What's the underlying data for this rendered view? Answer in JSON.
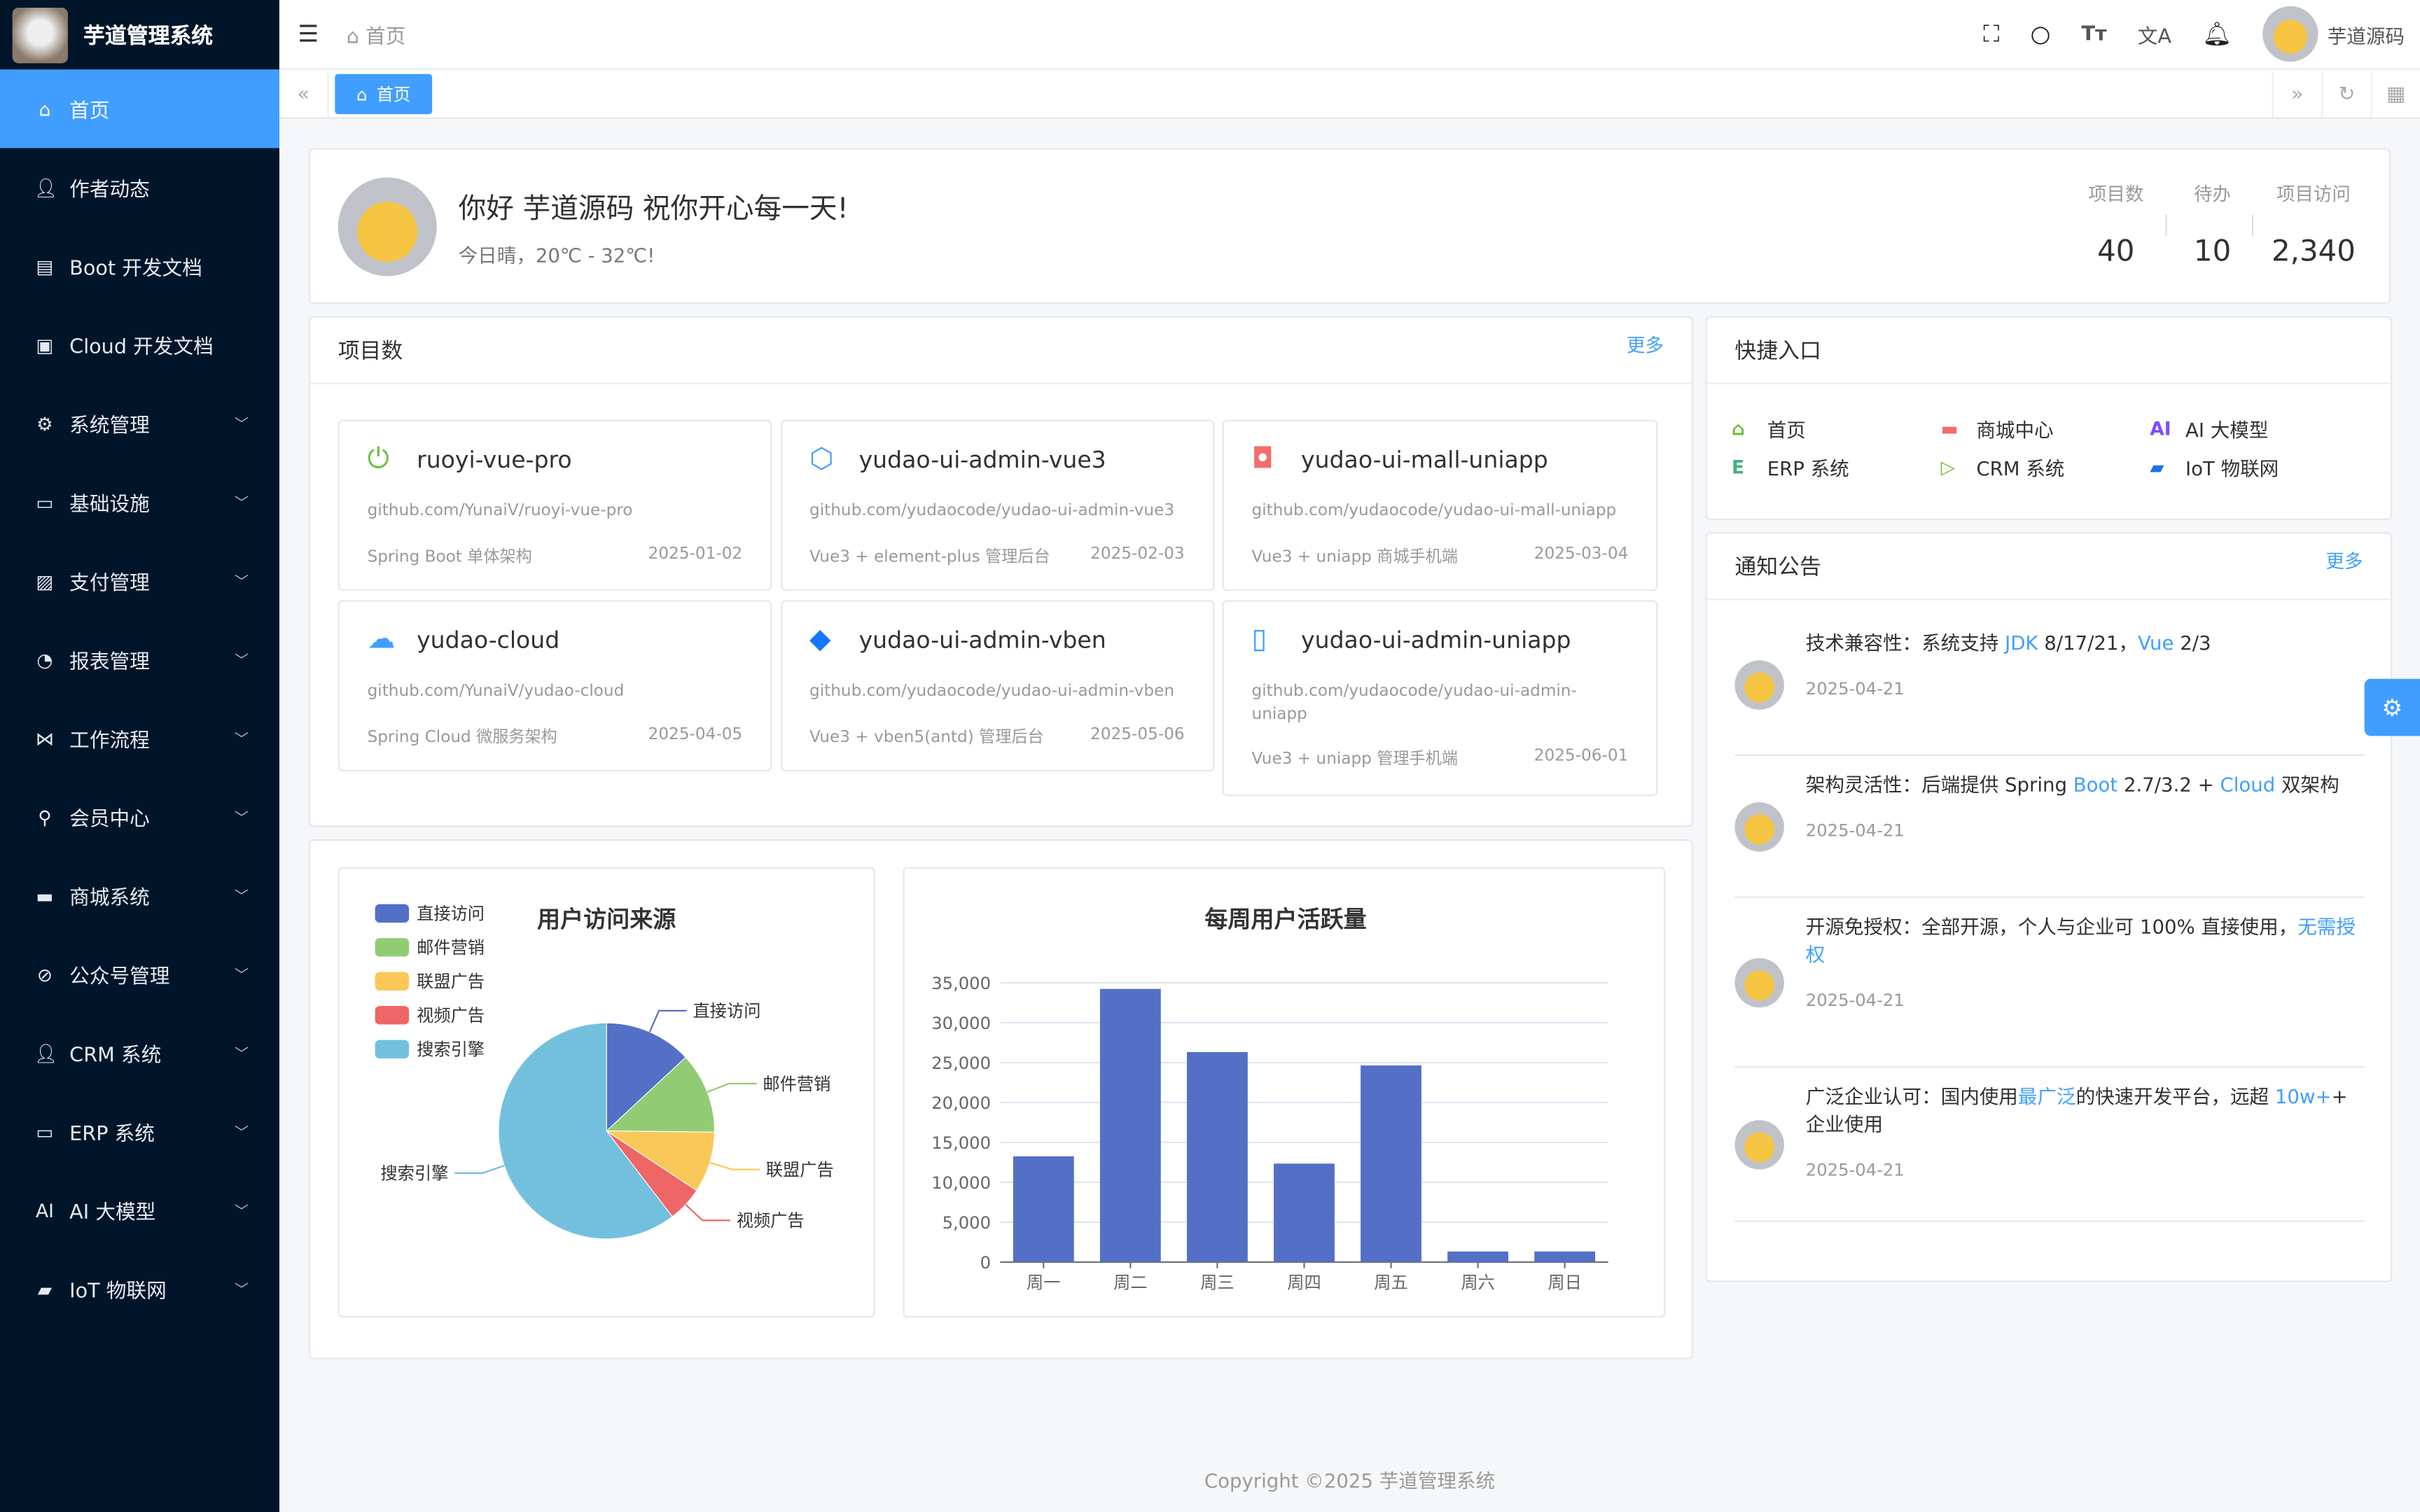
{
  "app": {
    "title": "芋道管理系统"
  },
  "sidebar": {
    "items": [
      {
        "label": "首页",
        "icon": "home-icon",
        "active": true,
        "expand": false
      },
      {
        "label": "作者动态",
        "icon": "user-icon",
        "expand": false
      },
      {
        "label": "Boot 开发文档",
        "icon": "document-icon",
        "expand": false
      },
      {
        "label": "Cloud 开发文档",
        "icon": "documents-icon",
        "expand": false
      },
      {
        "label": "系统管理",
        "icon": "gear-icon",
        "expand": true
      },
      {
        "label": "基础设施",
        "icon": "monitor-icon",
        "expand": true
      },
      {
        "label": "支付管理",
        "icon": "payment-icon",
        "expand": true
      },
      {
        "label": "报表管理",
        "icon": "pie-chart-icon",
        "expand": true
      },
      {
        "label": "工作流程",
        "icon": "workflow-icon",
        "expand": true
      },
      {
        "label": "会员中心",
        "icon": "bicycle-icon",
        "expand": true
      },
      {
        "label": "商城系统",
        "icon": "shop-icon",
        "expand": true
      },
      {
        "label": "公众号管理",
        "icon": "compass-icon",
        "expand": true
      },
      {
        "label": "CRM 系统",
        "icon": "user-icon",
        "expand": true
      },
      {
        "label": "ERP 系统",
        "icon": "store-icon",
        "expand": true
      },
      {
        "label": "AI 大模型",
        "icon": "ai-icon",
        "expand": true
      },
      {
        "label": "IoT 物联网",
        "icon": "car-icon",
        "expand": true
      }
    ]
  },
  "header": {
    "breadcrumb": "首页",
    "username": "芋道源码"
  },
  "tags": {
    "active": "首页"
  },
  "welcome": {
    "greeting": "你好 芋道源码 祝你开心每一天!",
    "weather": "今日晴，20℃ - 32℃!",
    "stats": [
      {
        "label": "项目数",
        "value": "40"
      },
      {
        "label": "待办",
        "value": "10"
      },
      {
        "label": "项目访问",
        "value": "2,340"
      }
    ]
  },
  "projects": {
    "title": "项目数",
    "more": "更多",
    "items": [
      {
        "name": "ruoyi-vue-pro",
        "url": "github.com/YunaiV/ruoyi-vue-pro",
        "desc": "Spring Boot 单体架构",
        "date": "2025-01-02",
        "icon": "power-icon",
        "color": "#67c23a"
      },
      {
        "name": "yudao-ui-admin-vue3",
        "url": "github.com/yudaocode/yudao-ui-admin-vue3",
        "desc": "Vue3 + element-plus 管理后台",
        "date": "2025-02-03",
        "icon": "vite-icon",
        "color": "#409eff"
      },
      {
        "name": "yudao-ui-mall-uniapp",
        "url": "github.com/yudaocode/yudao-ui-mall-uniapp",
        "desc": "Vue3 + uniapp 商城手机端",
        "date": "2025-03-04",
        "icon": "shopping-bag-icon",
        "color": "#f56c6c"
      },
      {
        "name": "yudao-cloud",
        "url": "github.com/YunaiV/yudao-cloud",
        "desc": "Spring Cloud 微服务架构",
        "date": "2025-04-05",
        "icon": "cloud-icon",
        "color": "#409eff"
      },
      {
        "name": "yudao-ui-admin-vben",
        "url": "github.com/yudaocode/yudao-ui-admin-vben",
        "desc": "Vue3 + vben5(antd) 管理后台",
        "date": "2025-05-06",
        "icon": "diamond-icon",
        "color": "#1677ff"
      },
      {
        "name": "yudao-ui-admin-uniapp",
        "url": "github.com/yudaocode/yudao-ui-admin-uniapp",
        "desc": "Vue3 + uniapp 管理手机端",
        "date": "2025-06-01",
        "icon": "mobile-icon",
        "color": "#409eff"
      }
    ]
  },
  "quick": {
    "title": "快捷入口",
    "items": [
      {
        "label": "首页",
        "icon": "home-icon",
        "color": "#67c23a"
      },
      {
        "label": "商城中心",
        "icon": "shop-icon",
        "color": "#f56c6c"
      },
      {
        "label": "AI 大模型",
        "icon": "ai-icon",
        "color": "#7c4dff"
      },
      {
        "label": "ERP 系统",
        "icon": "erp-icon",
        "color": "#3fb27f"
      },
      {
        "label": "CRM 系统",
        "icon": "play-icon",
        "color": "#67c23a"
      },
      {
        "label": "IoT 物联网",
        "icon": "car-icon",
        "color": "#1a73e8"
      }
    ]
  },
  "notices": {
    "title": "通知公告",
    "more": "更多",
    "items": [
      {
        "parts": [
          [
            "技术兼容性：系统支持 ",
            0
          ],
          [
            "JDK",
            1
          ],
          [
            " 8/17/21，",
            0
          ],
          [
            "Vue",
            1
          ],
          [
            " 2/3",
            0
          ]
        ],
        "date": "2025-04-21"
      },
      {
        "parts": [
          [
            "架构灵活性：后端提供 Spring ",
            0
          ],
          [
            "Boot",
            1
          ],
          [
            " 2.7/3.2 + ",
            0
          ],
          [
            "Cloud",
            1
          ],
          [
            " 双架构",
            0
          ]
        ],
        "date": "2025-04-21"
      },
      {
        "parts": [
          [
            "开源免授权：全部开源，个人与企业可 100% 直接使用，",
            0
          ],
          [
            "无需授权",
            1
          ]
        ],
        "date": "2025-04-21"
      },
      {
        "parts": [
          [
            "广泛企业认可：国内使用",
            0
          ],
          [
            "最广泛",
            1
          ],
          [
            "的快速开发平台，远超 ",
            0
          ],
          [
            "10w+",
            1
          ],
          [
            "+ 企业使用",
            0
          ]
        ],
        "date": "2025-04-21"
      }
    ]
  },
  "chart_data": [
    {
      "type": "pie",
      "title": "用户访问来源",
      "legend": "top-left",
      "categories": [
        "直接访问",
        "邮件营销",
        "联盟广告",
        "视频广告",
        "搜索引擎"
      ],
      "values": [
        335,
        310,
        234,
        135,
        1548
      ],
      "colors": [
        "#5470c6",
        "#91cc75",
        "#fac858",
        "#ee6666",
        "#73c0de"
      ]
    },
    {
      "type": "bar",
      "title": "每周用户活跃量",
      "categories": [
        "周一",
        "周二",
        "周三",
        "周四",
        "周五",
        "周六",
        "周日"
      ],
      "values": [
        13253,
        34235,
        26321,
        12340,
        24643,
        1322,
        1324
      ],
      "ylim": [
        0,
        35000
      ],
      "yticks": [
        "0",
        "5,000",
        "10,000",
        "15,000",
        "20,000",
        "25,000",
        "30,000",
        "35,000"
      ],
      "grid": true,
      "color": "#5470c6"
    }
  ],
  "footer": {
    "copyright": "Copyright ©2025 芋道管理系统"
  }
}
